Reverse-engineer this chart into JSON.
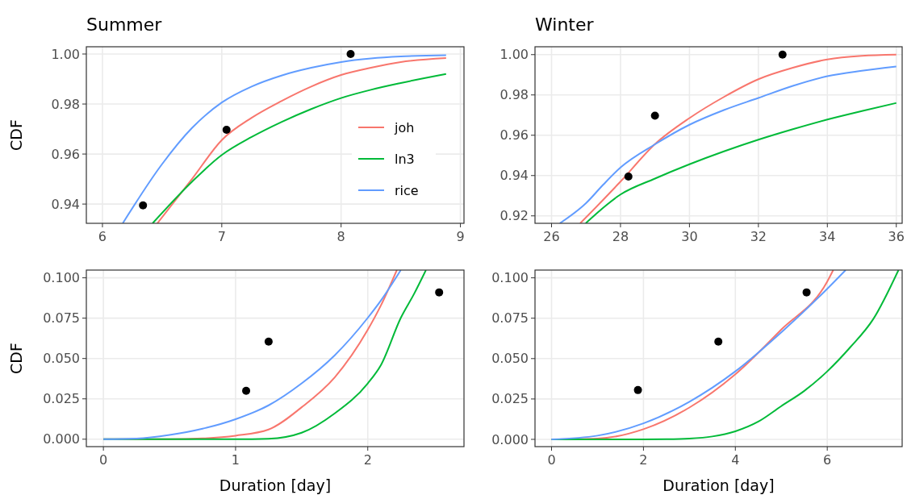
{
  "chart_data": [
    {
      "type": "line",
      "title": "Summer",
      "ylabel": "CDF",
      "xlim": [
        5.865,
        9.03
      ],
      "ylim": [
        0.9323,
        1.0029
      ],
      "xticks": [
        6,
        7,
        8,
        9
      ],
      "yticks": [
        {
          "value": 0.94,
          "label": "0.94"
        },
        {
          "value": 0.96,
          "label": "0.96"
        },
        {
          "value": 0.98,
          "label": "0.98"
        },
        {
          "value": 1,
          "label": "1.00"
        }
      ],
      "grid": true,
      "legend": "right",
      "series": [
        {
          "name": "joh",
          "color": "#f8766d",
          "x": [
            6.46,
            6.75,
            7,
            7.25,
            7.5,
            7.75,
            8,
            8.25,
            8.5,
            8.88
          ],
          "values": [
            0.9323,
            0.95,
            0.9656,
            0.9745,
            0.9812,
            0.987,
            0.9916,
            0.9945,
            0.9968,
            0.9984
          ]
        },
        {
          "name": "ln3",
          "color": "#00ba38",
          "x": [
            6.42,
            6.75,
            7,
            7.25,
            7.5,
            7.75,
            8,
            8.25,
            8.5,
            8.88
          ],
          "values": [
            0.9323,
            0.9489,
            0.9596,
            0.9668,
            0.9728,
            0.978,
            0.9824,
            0.9857,
            0.9884,
            0.992
          ]
        },
        {
          "name": "rice",
          "color": "#619cff",
          "x": [
            6.17,
            6.5,
            6.75,
            7,
            7.25,
            7.5,
            7.75,
            8,
            8.25,
            8.5,
            8.88
          ],
          "values": [
            0.9323,
            0.956,
            0.9704,
            0.9806,
            0.987,
            0.9914,
            0.9945,
            0.9968,
            0.9982,
            0.999,
            0.9995
          ]
        },
        {
          "type": "scatter",
          "color": "#000000",
          "x": [
            6.34,
            7.04,
            8.08
          ],
          "values": [
            0.9395,
            0.9697,
            1.0
          ]
        }
      ]
    },
    {
      "type": "line",
      "title": "Winter",
      "xlim": [
        25.52,
        36.17
      ],
      "ylim": [
        0.9163,
        1.0039
      ],
      "xticks": [
        26,
        28,
        30,
        32,
        34,
        36
      ],
      "yticks": [
        {
          "value": 0.92,
          "label": "0.92"
        },
        {
          "value": 0.94,
          "label": "0.94"
        },
        {
          "value": 0.96,
          "label": "0.96"
        },
        {
          "value": 0.98,
          "label": "0.98"
        },
        {
          "value": 1,
          "label": "1.00"
        }
      ],
      "grid": true,
      "series": [
        {
          "color": "#f8766d",
          "x": [
            26.83,
            27.5,
            28,
            29,
            30,
            31,
            32,
            33,
            34,
            35,
            36
          ],
          "values": [
            0.9163,
            0.928,
            0.937,
            0.9556,
            0.9685,
            0.979,
            0.9878,
            0.9935,
            0.9976,
            0.9994,
            1.0
          ]
        },
        {
          "color": "#00ba38",
          "x": [
            26.99,
            28,
            29,
            30,
            31,
            32,
            33,
            34,
            35,
            36
          ],
          "values": [
            0.9163,
            0.9306,
            0.9385,
            0.9456,
            0.952,
            0.9578,
            0.963,
            0.9678,
            0.972,
            0.976
          ]
        },
        {
          "color": "#619cff",
          "x": [
            26.24,
            27,
            27.5,
            28,
            29,
            30,
            31,
            32,
            33,
            34,
            35,
            36
          ],
          "values": [
            0.9163,
            0.9263,
            0.9355,
            0.944,
            0.9555,
            0.9652,
            0.9725,
            0.9785,
            0.9845,
            0.9893,
            0.992,
            0.9941
          ]
        },
        {
          "type": "scatter",
          "color": "#000000",
          "x": [
            28.23,
            29.0,
            32.7
          ],
          "values": [
            0.9395,
            0.9697,
            1.0
          ]
        }
      ]
    },
    {
      "type": "line",
      "xlabel": "Duration [day]",
      "ylabel": "CDF",
      "xlim": [
        -0.129,
        2.728
      ],
      "ylim": [
        -0.0046,
        0.1048
      ],
      "xticks": [
        0,
        1,
        2
      ],
      "yticks": [
        {
          "value": 0,
          "label": "0.000"
        },
        {
          "value": 0.025,
          "label": "0.025"
        },
        {
          "value": 0.05,
          "label": "0.050"
        },
        {
          "value": 0.075,
          "label": "0.075"
        },
        {
          "value": 0.1,
          "label": "0.100"
        }
      ],
      "grid": true,
      "series": [
        {
          "color": "#f8766d",
          "x": [
            0,
            0.5,
            0.75,
            1,
            1.25,
            1.5,
            1.75,
            2,
            2.1,
            2.22
          ],
          "values": [
            0,
            0,
            0.0005,
            0.0022,
            0.006,
            0.0198,
            0.0383,
            0.0678,
            0.083,
            0.1048
          ]
        },
        {
          "color": "#00ba38",
          "x": [
            0,
            1,
            1.25,
            1.5,
            1.75,
            2,
            2.1,
            2.25,
            2.35,
            2.44
          ],
          "values": [
            0,
            0,
            0.0003,
            0.004,
            0.016,
            0.0346,
            0.046,
            0.0752,
            0.09,
            0.1048
          ]
        },
        {
          "color": "#619cff",
          "x": [
            0,
            0.25,
            0.5,
            0.75,
            1,
            1.25,
            1.5,
            1.75,
            2,
            2.1,
            2.25
          ],
          "values": [
            0,
            0.0004,
            0.0026,
            0.0065,
            0.0124,
            0.021,
            0.0346,
            0.052,
            0.0752,
            0.086,
            0.1048
          ]
        },
        {
          "type": "scatter",
          "color": "#000000",
          "x": [
            1.08,
            1.25,
            2.54
          ],
          "values": [
            0.03,
            0.0605,
            0.091
          ]
        }
      ]
    },
    {
      "type": "line",
      "xlabel": "Duration [day]",
      "xlim": [
        -0.36,
        7.63
      ],
      "ylim": [
        -0.0045,
        0.1048
      ],
      "xticks": [
        0,
        2,
        4,
        6
      ],
      "yticks": [
        {
          "value": 0,
          "label": "0.000"
        },
        {
          "value": 0.025,
          "label": "0.025"
        },
        {
          "value": 0.05,
          "label": "0.050"
        },
        {
          "value": 0.075,
          "label": "0.075"
        },
        {
          "value": 0.1,
          "label": "0.100"
        }
      ],
      "grid": true,
      "series": [
        {
          "color": "#f8766d",
          "x": [
            0,
            1,
            2,
            3,
            4,
            5,
            6,
            6.13
          ],
          "values": [
            0,
            0.0005,
            0.0063,
            0.0197,
            0.0403,
            0.068,
            0.0977,
            0.1048
          ]
        },
        {
          "color": "#00ba38",
          "x": [
            0,
            2,
            2.5,
            3,
            3.5,
            4,
            4.5,
            5,
            5.5,
            6,
            6.5,
            7,
            7.55
          ],
          "values": [
            0,
            0,
            0.0001,
            0.0005,
            0.0018,
            0.005,
            0.011,
            0.0206,
            0.03,
            0.0421,
            0.057,
            0.0744,
            0.1048
          ]
        },
        {
          "color": "#619cff",
          "x": [
            0,
            1,
            2,
            3,
            4,
            5,
            6,
            6.4
          ],
          "values": [
            0,
            0.0023,
            0.0099,
            0.0233,
            0.0421,
            0.0663,
            0.0932,
            0.1048
          ]
        },
        {
          "type": "scatter",
          "color": "#000000",
          "x": [
            1.88,
            3.63,
            5.55
          ],
          "values": [
            0.0305,
            0.0605,
            0.091
          ]
        }
      ]
    }
  ]
}
